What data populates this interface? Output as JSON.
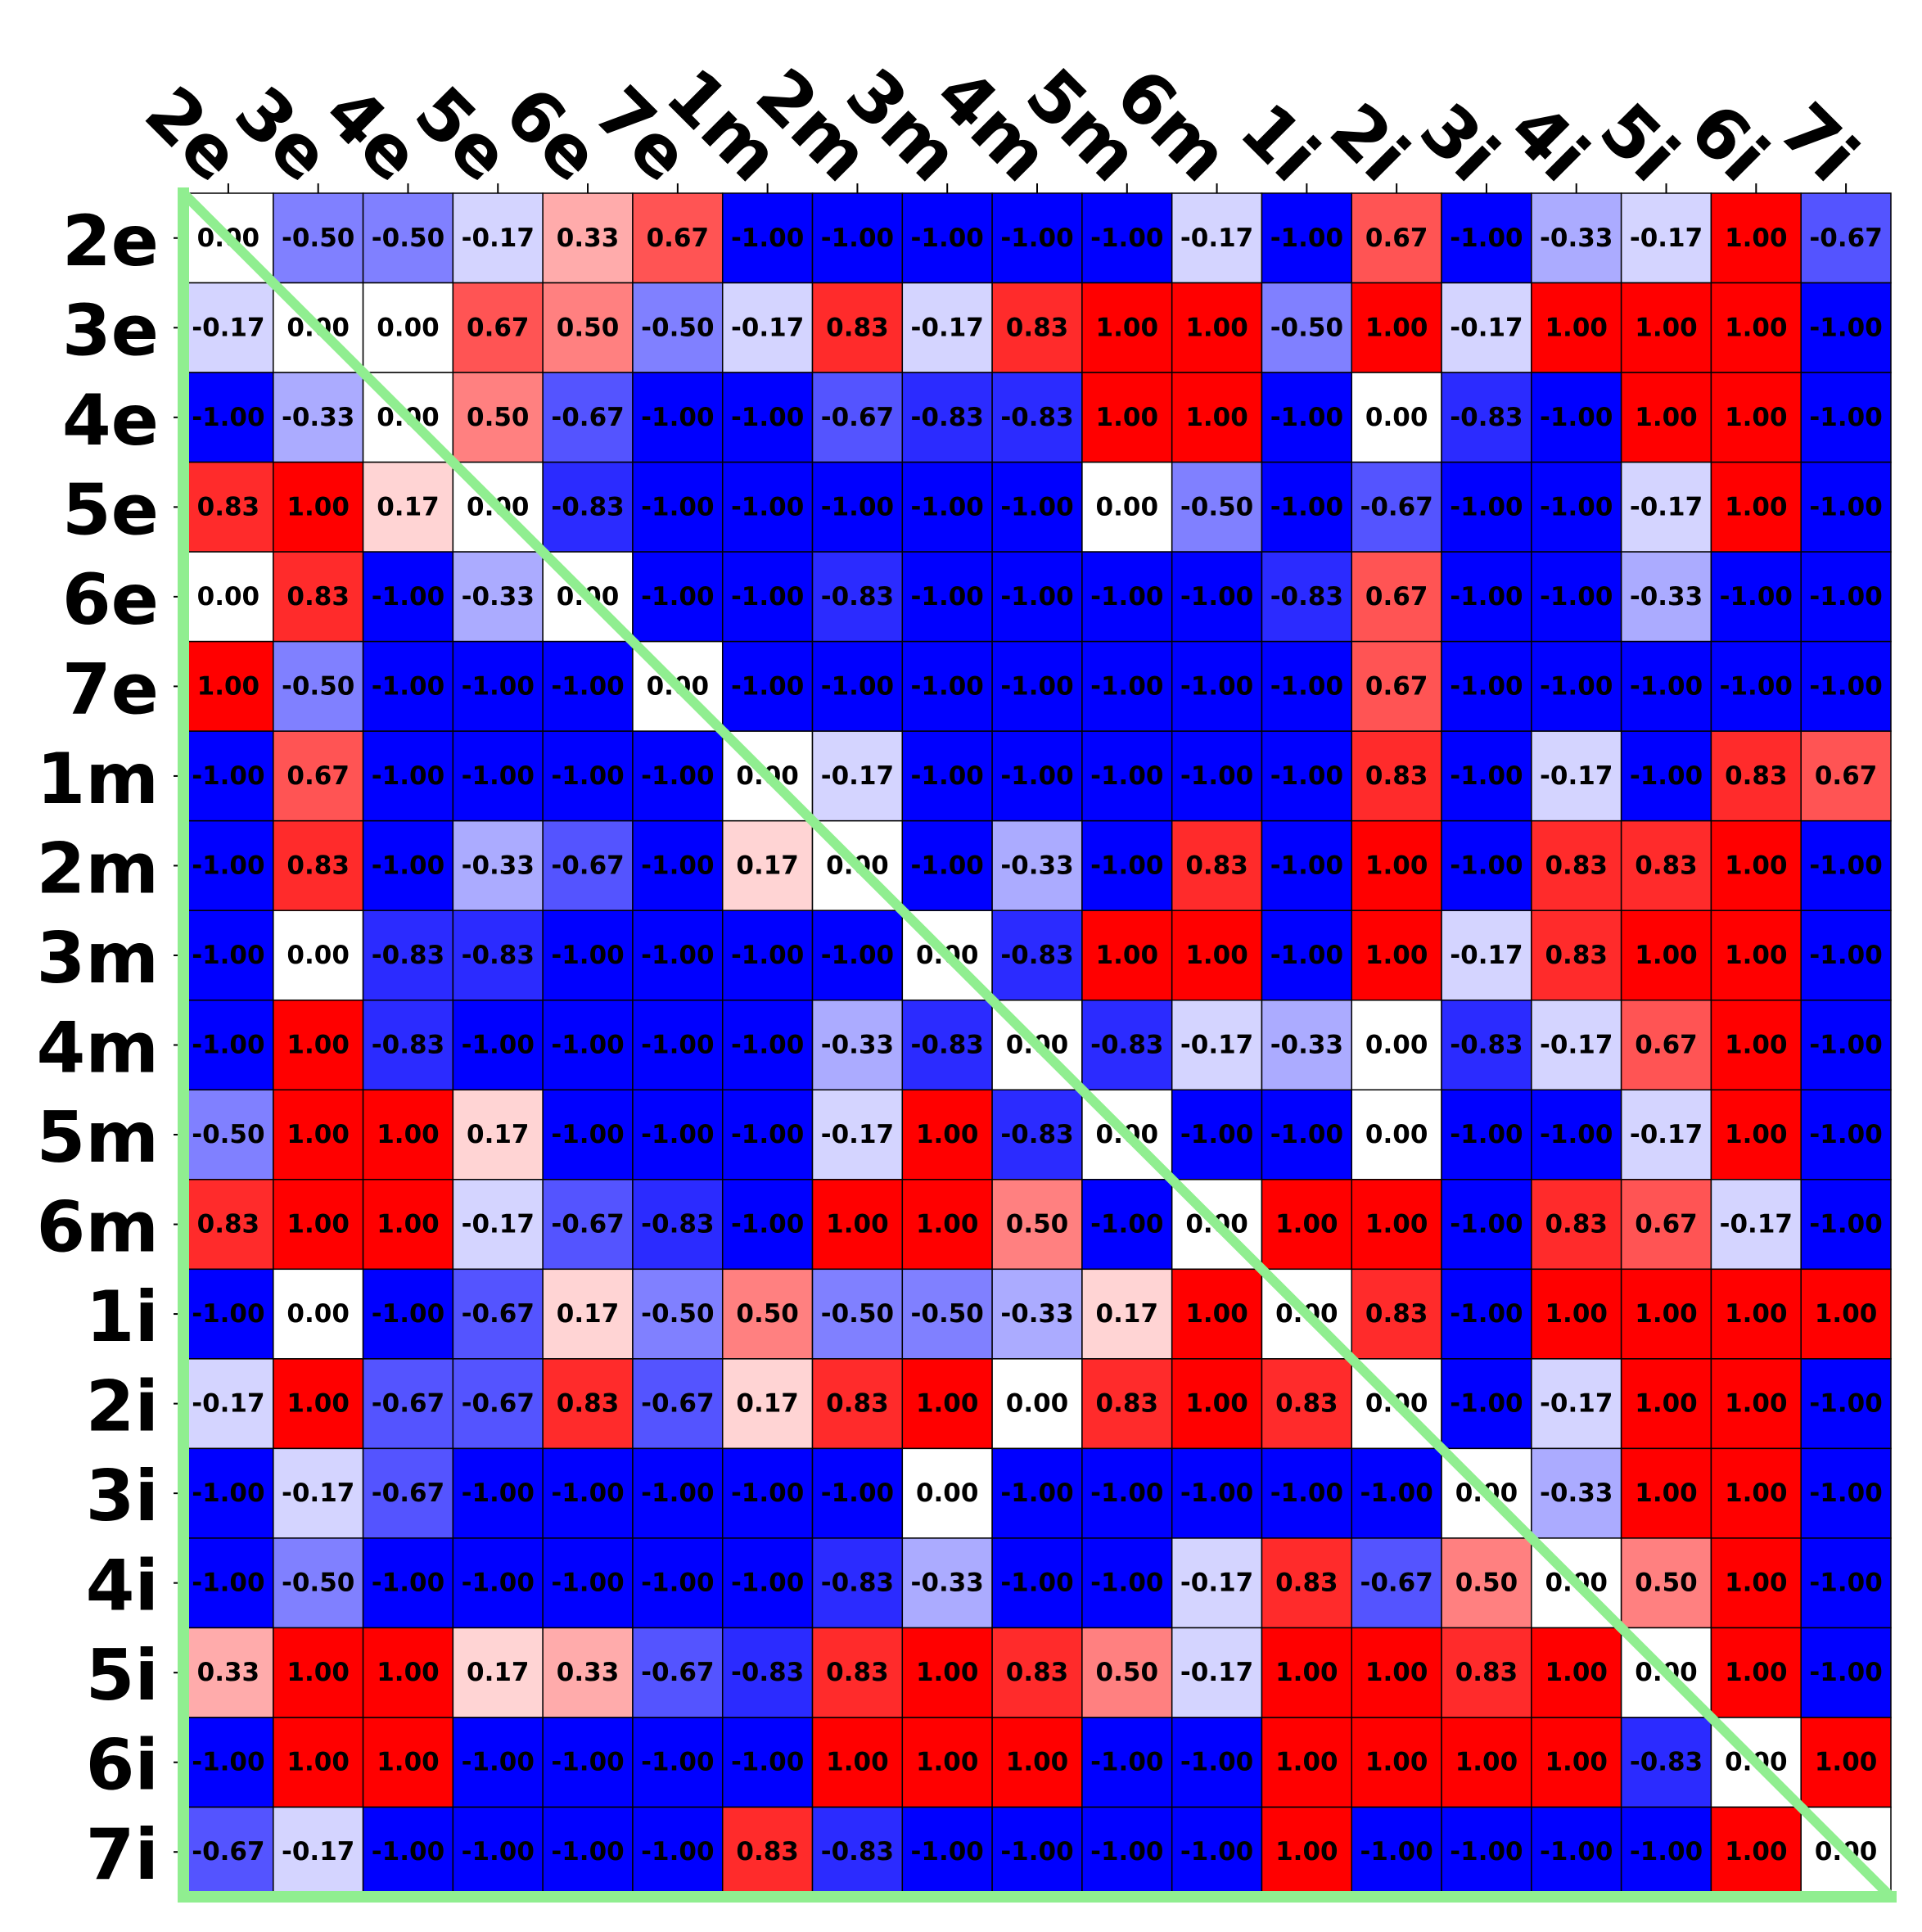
{
  "chart_data": {
    "type": "heatmap",
    "title": "",
    "xlabel": "",
    "ylabel": "",
    "colormap": "bwr",
    "vmin": -1,
    "vmax": 1,
    "value_format": "2 decimals",
    "diagonal_line": true,
    "colors": {
      "negative": "#0000ff",
      "zero": "#ffffff",
      "positive": "#ff0000",
      "grid": "#000000",
      "frame_and_diagonal": "#90ee90",
      "text": "#000000"
    },
    "x_labels": [
      "2e",
      "3e",
      "4e",
      "5e",
      "6e",
      "7e",
      "1m",
      "2m",
      "3m",
      "4m",
      "5m",
      "6m",
      "1i",
      "2i",
      "3i",
      "4i",
      "5i",
      "6i",
      "7i"
    ],
    "y_labels": [
      "2e",
      "3e",
      "4e",
      "5e",
      "6e",
      "7e",
      "1m",
      "2m",
      "3m",
      "4m",
      "5m",
      "6m",
      "1i",
      "2i",
      "3i",
      "4i",
      "5i",
      "6i",
      "7i"
    ],
    "values": [
      [
        0.0,
        -0.5,
        -0.5,
        -0.17,
        0.33,
        0.67,
        -1.0,
        -1.0,
        -1.0,
        -1.0,
        -1.0,
        -0.17,
        -1.0,
        0.67,
        -1.0,
        -0.33,
        -0.17,
        1.0,
        -0.67
      ],
      [
        -0.17,
        0.0,
        0.0,
        0.67,
        0.5,
        -0.5,
        -0.17,
        0.83,
        -0.17,
        0.83,
        1.0,
        1.0,
        -0.5,
        1.0,
        -0.17,
        1.0,
        1.0,
        1.0,
        -1.0
      ],
      [
        -1.0,
        -0.33,
        0.0,
        0.5,
        -0.67,
        -1.0,
        -1.0,
        -0.67,
        -0.83,
        -0.83,
        1.0,
        1.0,
        -1.0,
        0.0,
        -0.83,
        -1.0,
        1.0,
        1.0,
        -1.0
      ],
      [
        0.83,
        1.0,
        0.17,
        0.0,
        -0.83,
        -1.0,
        -1.0,
        -1.0,
        -1.0,
        -1.0,
        0.0,
        -0.5,
        -1.0,
        -0.67,
        -1.0,
        -1.0,
        -0.17,
        1.0,
        -1.0
      ],
      [
        0.0,
        0.83,
        -1.0,
        -0.33,
        0.0,
        -1.0,
        -1.0,
        -0.83,
        -1.0,
        -1.0,
        -1.0,
        -1.0,
        -0.83,
        0.67,
        -1.0,
        -1.0,
        -0.33,
        -1.0,
        -1.0
      ],
      [
        1.0,
        -0.5,
        -1.0,
        -1.0,
        -1.0,
        0.0,
        -1.0,
        -1.0,
        -1.0,
        -1.0,
        -1.0,
        -1.0,
        -1.0,
        0.67,
        -1.0,
        -1.0,
        -1.0,
        -1.0,
        -1.0
      ],
      [
        -1.0,
        0.67,
        -1.0,
        -1.0,
        -1.0,
        -1.0,
        0.0,
        -0.17,
        -1.0,
        -1.0,
        -1.0,
        -1.0,
        -1.0,
        0.83,
        -1.0,
        -0.17,
        -1.0,
        0.83,
        0.67
      ],
      [
        -1.0,
        0.83,
        -1.0,
        -0.33,
        -0.67,
        -1.0,
        0.17,
        0.0,
        -1.0,
        -0.33,
        -1.0,
        0.83,
        -1.0,
        1.0,
        -1.0,
        0.83,
        0.83,
        1.0,
        -1.0
      ],
      [
        -1.0,
        0.0,
        -0.83,
        -0.83,
        -1.0,
        -1.0,
        -1.0,
        -1.0,
        0.0,
        -0.83,
        1.0,
        1.0,
        -1.0,
        1.0,
        -0.17,
        0.83,
        1.0,
        1.0,
        -1.0
      ],
      [
        -1.0,
        1.0,
        -0.83,
        -1.0,
        -1.0,
        -1.0,
        -1.0,
        -0.33,
        -0.83,
        0.0,
        -0.83,
        -0.17,
        -0.33,
        0.0,
        -0.83,
        -0.17,
        0.67,
        1.0,
        -1.0
      ],
      [
        -0.5,
        1.0,
        1.0,
        0.17,
        -1.0,
        -1.0,
        -1.0,
        -0.17,
        1.0,
        -0.83,
        0.0,
        -1.0,
        -1.0,
        0.0,
        -1.0,
        -1.0,
        -0.17,
        1.0,
        -1.0
      ],
      [
        0.83,
        1.0,
        1.0,
        -0.17,
        -0.67,
        -0.83,
        -1.0,
        1.0,
        1.0,
        0.5,
        -1.0,
        0.0,
        1.0,
        1.0,
        -1.0,
        0.83,
        0.67,
        -0.17,
        -1.0
      ],
      [
        -1.0,
        0.0,
        -1.0,
        -0.67,
        0.17,
        -0.5,
        0.5,
        -0.5,
        -0.5,
        -0.33,
        0.17,
        1.0,
        0.0,
        0.83,
        -1.0,
        1.0,
        1.0,
        1.0,
        1.0
      ],
      [
        -0.17,
        1.0,
        -0.67,
        -0.67,
        0.83,
        -0.67,
        0.17,
        0.83,
        1.0,
        0.0,
        0.83,
        1.0,
        0.83,
        0.0,
        -1.0,
        -0.17,
        1.0,
        1.0,
        -1.0
      ],
      [
        -1.0,
        -0.17,
        -0.67,
        -1.0,
        -1.0,
        -1.0,
        -1.0,
        -1.0,
        0.0,
        -1.0,
        -1.0,
        -1.0,
        -1.0,
        -1.0,
        0.0,
        -0.33,
        1.0,
        1.0,
        -1.0
      ],
      [
        -1.0,
        -0.5,
        -1.0,
        -1.0,
        -1.0,
        -1.0,
        -1.0,
        -0.83,
        -0.33,
        -1.0,
        -1.0,
        -0.17,
        0.83,
        -0.67,
        0.5,
        0.0,
        0.5,
        1.0,
        -1.0
      ],
      [
        0.33,
        1.0,
        1.0,
        0.17,
        0.33,
        -0.67,
        -0.83,
        0.83,
        1.0,
        0.83,
        0.5,
        -0.17,
        1.0,
        1.0,
        0.83,
        1.0,
        0.0,
        1.0,
        -1.0
      ],
      [
        -1.0,
        1.0,
        1.0,
        -1.0,
        -1.0,
        -1.0,
        -1.0,
        1.0,
        1.0,
        1.0,
        -1.0,
        -1.0,
        1.0,
        1.0,
        1.0,
        1.0,
        -0.83,
        0.0,
        1.0
      ],
      [
        -0.67,
        -0.17,
        -1.0,
        -1.0,
        -1.0,
        -1.0,
        0.83,
        -0.83,
        -1.0,
        -1.0,
        -1.0,
        -1.0,
        1.0,
        -1.0,
        -1.0,
        -1.0,
        -1.0,
        1.0,
        0.0
      ]
    ]
  }
}
